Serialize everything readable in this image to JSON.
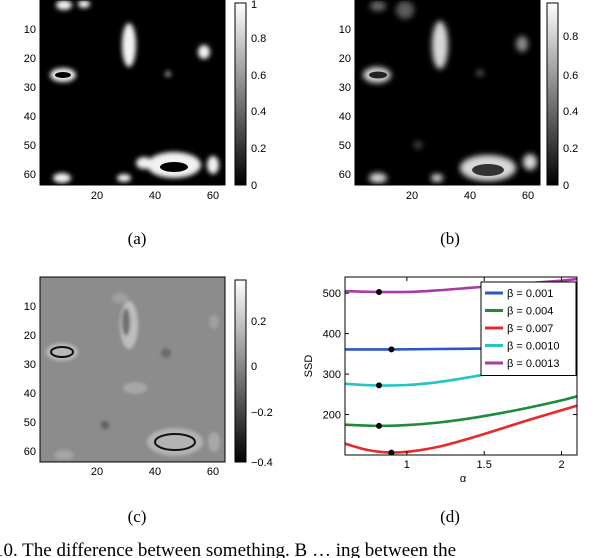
{
  "panels": [
    {
      "id": "a",
      "caption": "(a)",
      "yticks": [
        "10",
        "20",
        "30",
        "40",
        "50",
        "60"
      ],
      "xticks": [
        "20",
        "40",
        "60"
      ],
      "colorbar_ticks": [
        "1",
        "0.8",
        "0.6",
        "0.4",
        "0.2",
        "0"
      ]
    },
    {
      "id": "b",
      "caption": "(b)",
      "yticks": [
        "10",
        "20",
        "30",
        "40",
        "50",
        "60"
      ],
      "xticks": [
        "20",
        "40",
        "60"
      ],
      "colorbar_ticks": [
        "0.8",
        "0.6",
        "0.4",
        "0.2",
        "0"
      ]
    },
    {
      "id": "c",
      "caption": "(c)",
      "yticks": [
        "10",
        "20",
        "30",
        "40",
        "50",
        "60"
      ],
      "xticks": [
        "20",
        "40",
        "60"
      ],
      "colorbar_ticks": [
        "0.2",
        "0",
        "−0.2",
        "−0.4"
      ]
    }
  ],
  "plot_d": {
    "caption": "(d)"
  },
  "footer_text": "10.    The difference between something. B …   ing  between  the",
  "chart_data": {
    "type": "line",
    "xlabel": "α",
    "ylabel": "SSD",
    "xlim": [
      0.6,
      2.1
    ],
    "ylim": [
      100,
      540
    ],
    "xticks": [
      1,
      1.5,
      2
    ],
    "xtick_labels": [
      "1",
      "1.5",
      "2"
    ],
    "yticks": [
      200,
      300,
      400,
      500
    ],
    "ytick_labels": [
      "200",
      "300",
      "400",
      "500"
    ],
    "legend_position": "top-right",
    "grid": false,
    "series": [
      {
        "name": "β = 0.001",
        "color": "#2a56c8",
        "x": [
          0.6,
          0.9,
          1.2,
          1.5,
          1.8,
          2.1
        ],
        "y": [
          361,
          361,
          362,
          363,
          364,
          366
        ],
        "marker": [
          0.9,
          361
        ]
      },
      {
        "name": "β = 0.004",
        "color": "#1d8a3c",
        "x": [
          0.6,
          0.8,
          1.0,
          1.2,
          1.4,
          1.6,
          1.8,
          2.0,
          2.1
        ],
        "y": [
          175,
          172,
          174,
          180,
          190,
          203,
          218,
          235,
          245
        ],
        "marker": [
          0.82,
          172
        ]
      },
      {
        "name": "β = 0.007",
        "color": "#e62a2a",
        "x": [
          0.6,
          0.75,
          0.9,
          1.05,
          1.2,
          1.35,
          1.5,
          1.65,
          1.8,
          1.95,
          2.1
        ],
        "y": [
          128,
          112,
          106,
          110,
          120,
          135,
          152,
          170,
          188,
          205,
          222
        ],
        "marker": [
          0.9,
          106
        ]
      },
      {
        "name": "β = 0.0010",
        "color": "#22c4c4",
        "x": [
          0.6,
          0.8,
          1.0,
          1.2,
          1.4,
          1.6,
          1.8,
          2.0,
          2.1
        ],
        "y": [
          276,
          272,
          273,
          280,
          292,
          306,
          320,
          334,
          340
        ],
        "marker": [
          0.82,
          272
        ]
      },
      {
        "name": "β = 0.0013",
        "color": "#a63ca6",
        "x": [
          0.6,
          0.8,
          1.0,
          1.2,
          1.4,
          1.6,
          1.8,
          2.0,
          2.1
        ],
        "y": [
          505,
          503,
          503,
          507,
          513,
          519,
          525,
          531,
          535
        ],
        "marker": [
          0.82,
          503
        ]
      }
    ]
  }
}
